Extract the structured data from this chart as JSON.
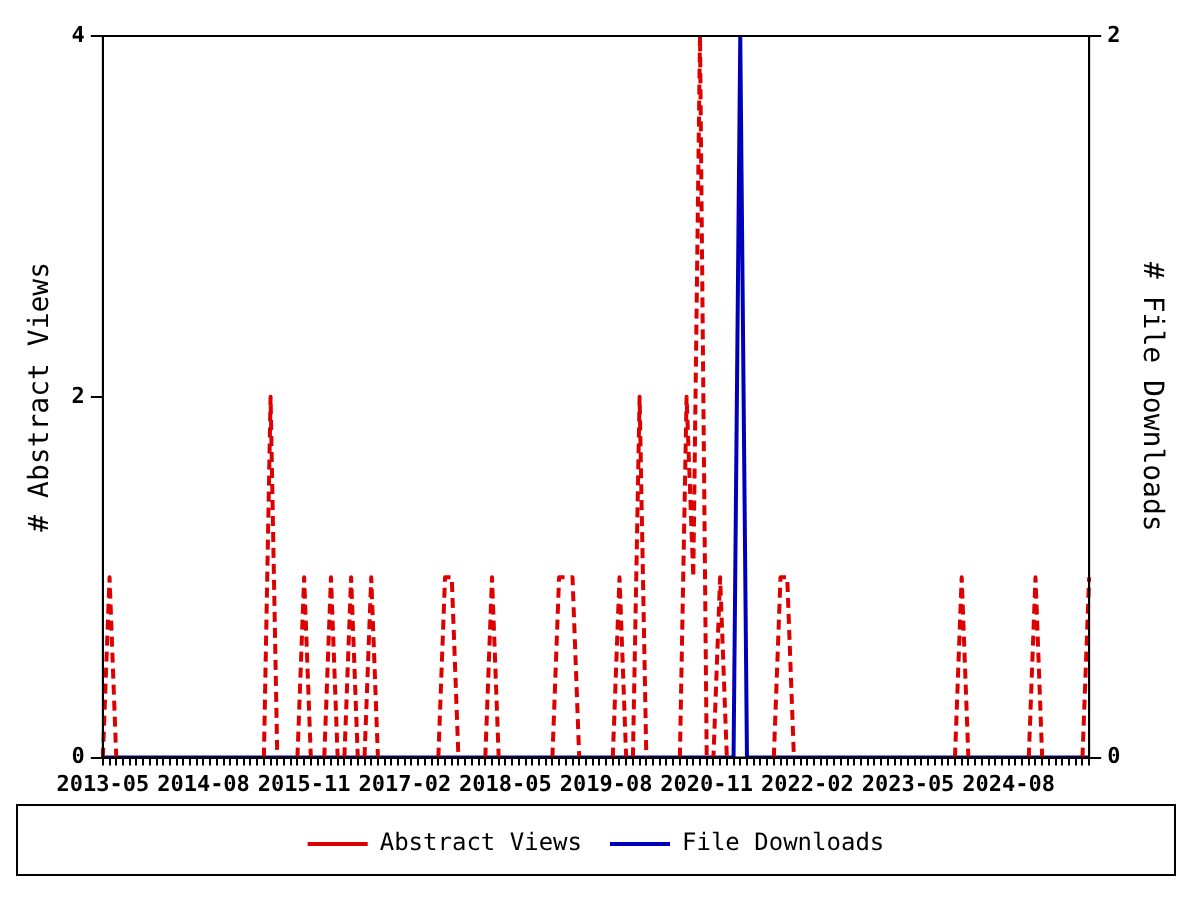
{
  "chart_data": {
    "type": "line",
    "categories": [
      "2013-05",
      null,
      null,
      null,
      null,
      null,
      null,
      null,
      null,
      null,
      null,
      null,
      null,
      null,
      null,
      "2014-08",
      null,
      null,
      null,
      null,
      null,
      null,
      null,
      null,
      null,
      null,
      null,
      null,
      null,
      null,
      "2015-11",
      null,
      null,
      null,
      null,
      null,
      null,
      null,
      null,
      null,
      null,
      null,
      null,
      null,
      null,
      "2017-02",
      null,
      null,
      null,
      null,
      null,
      null,
      null,
      null,
      null,
      null,
      null,
      null,
      null,
      null,
      "2018-05",
      null,
      null,
      null,
      null,
      null,
      null,
      null,
      null,
      null,
      null,
      null,
      null,
      null,
      null,
      "2019-08",
      null,
      null,
      null,
      null,
      null,
      null,
      null,
      null,
      null,
      null,
      null,
      null,
      null,
      null,
      "2020-11",
      null,
      null,
      null,
      null,
      null,
      null,
      null,
      null,
      null,
      null,
      null,
      null,
      null,
      null,
      "2022-02",
      null,
      null,
      null,
      null,
      null,
      null,
      null,
      null,
      null,
      null,
      null,
      null,
      null,
      null,
      "2023-05",
      null,
      null,
      null,
      null,
      null,
      null,
      null,
      null,
      null,
      null,
      null,
      null,
      null,
      null,
      "2024-08",
      null,
      null,
      null,
      null,
      null,
      null,
      null,
      null,
      null,
      null,
      null,
      null
    ],
    "series": [
      {
        "name": "Abstract Views",
        "color": "#dd0000",
        "line_style": "dashed",
        "values": [
          0,
          1,
          0,
          null,
          null,
          null,
          null,
          null,
          null,
          null,
          null,
          null,
          null,
          null,
          null,
          null,
          null,
          null,
          null,
          null,
          null,
          null,
          null,
          null,
          0,
          2,
          0,
          null,
          null,
          0,
          1,
          0,
          null,
          0,
          1,
          0,
          0,
          1,
          0,
          0,
          1,
          0,
          null,
          null,
          null,
          null,
          null,
          null,
          null,
          null,
          0,
          1,
          1,
          0,
          null,
          null,
          null,
          0,
          1,
          0,
          null,
          null,
          null,
          null,
          null,
          null,
          null,
          0,
          1,
          1,
          1,
          0,
          null,
          null,
          null,
          null,
          0,
          1,
          0,
          0,
          2,
          0,
          null,
          null,
          null,
          null,
          0,
          2,
          1,
          4,
          0,
          0,
          1,
          0,
          null,
          null,
          null,
          null,
          null,
          null,
          0,
          1,
          1,
          0,
          null,
          null,
          null,
          null,
          null,
          null,
          null,
          null,
          null,
          null,
          null,
          null,
          null,
          null,
          null,
          null,
          null,
          null,
          null,
          null,
          null,
          null,
          null,
          0,
          1,
          0,
          null,
          null,
          null,
          null,
          null,
          null,
          null,
          null,
          0,
          1,
          0,
          null,
          null,
          null,
          null,
          null,
          0,
          1
        ]
      },
      {
        "name": "File Downloads",
        "color": "#0000bb",
        "line_style": "solid",
        "axis": "y2",
        "values": [
          0,
          0,
          0,
          0,
          0,
          0,
          0,
          0,
          0,
          0,
          0,
          0,
          0,
          0,
          0,
          0,
          0,
          0,
          0,
          0,
          0,
          0,
          0,
          0,
          0,
          0,
          0,
          0,
          0,
          0,
          0,
          0,
          0,
          0,
          0,
          0,
          0,
          0,
          0,
          0,
          0,
          0,
          0,
          0,
          0,
          0,
          0,
          0,
          0,
          0,
          0,
          0,
          0,
          0,
          0,
          0,
          0,
          0,
          0,
          0,
          0,
          0,
          0,
          0,
          0,
          0,
          0,
          0,
          0,
          0,
          0,
          0,
          0,
          0,
          0,
          0,
          0,
          0,
          0,
          0,
          0,
          0,
          0,
          0,
          0,
          0,
          0,
          0,
          0,
          0,
          0,
          0,
          0,
          0,
          0,
          2,
          0,
          0,
          0,
          0,
          0,
          0,
          0,
          0,
          0,
          0,
          0,
          0,
          0,
          0,
          0,
          0,
          0,
          0,
          0,
          0,
          0,
          0,
          0,
          0,
          0,
          0,
          0,
          0,
          0,
          0,
          0,
          0,
          0,
          0,
          0,
          0,
          0,
          0,
          0,
          0,
          0,
          0,
          0,
          0,
          0,
          0,
          0,
          0,
          0,
          0,
          0,
          0
        ]
      }
    ],
    "ylabel": "# Abstract Views",
    "y2label": "# File Downloads",
    "ylim": [
      0,
      4
    ],
    "yticks": [
      0,
      2,
      4
    ],
    "y2lim": [
      0,
      2
    ],
    "y2ticks": [
      0,
      2
    ],
    "marker": "none",
    "legend": "bottom"
  }
}
